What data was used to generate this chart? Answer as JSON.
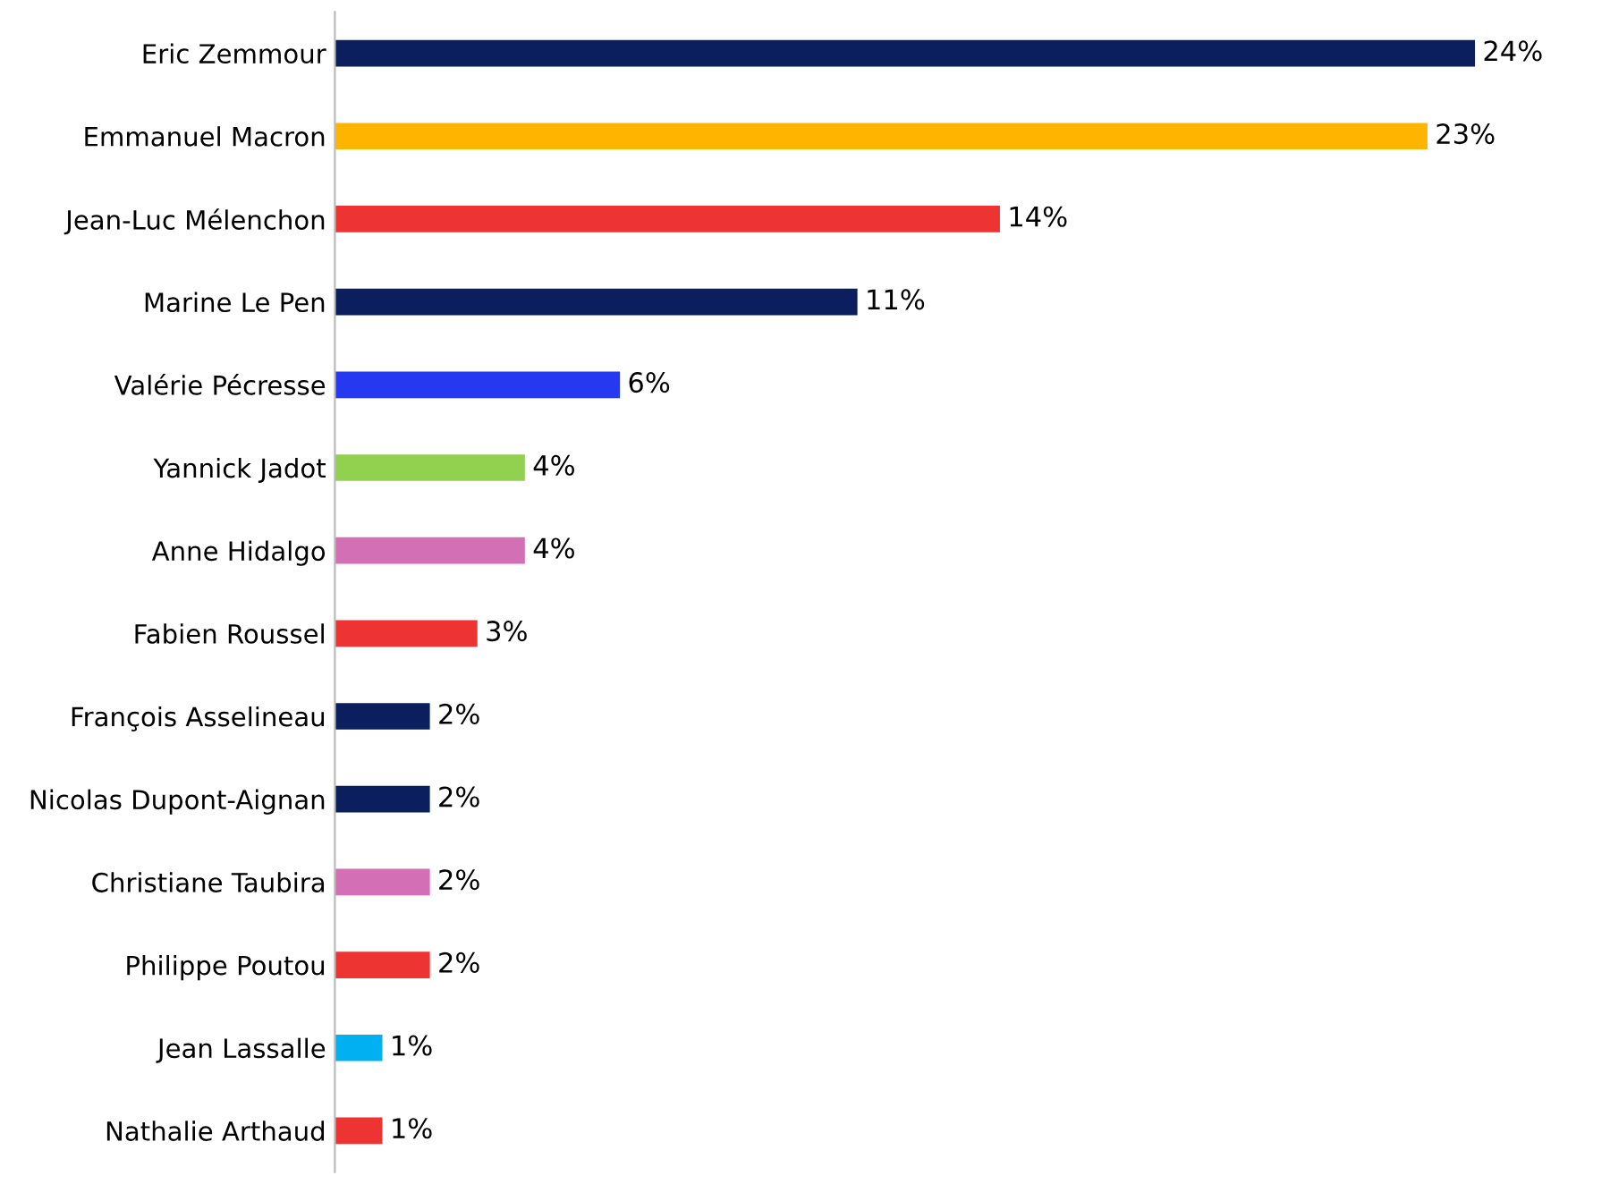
{
  "chart_data": {
    "type": "bar",
    "orientation": "horizontal",
    "value_labels": [
      "24%",
      "23%",
      "14%",
      "11%",
      "6%",
      "4%",
      "4%",
      "3%",
      "2%",
      "2%",
      "2%",
      "2%",
      "1%",
      "1%"
    ],
    "categories": [
      "Eric Zemmour",
      "Emmanuel Macron",
      "Jean-Luc Mélenchon",
      "Marine Le Pen",
      "Valérie Pécresse",
      "Yannick Jadot",
      "Anne Hidalgo",
      "Fabien Roussel",
      "François Asselineau",
      "Nicolas Dupont-Aignan",
      "Christiane Taubira",
      "Philippe Poutou",
      "Jean Lassalle",
      "Nathalie Arthaud"
    ],
    "values": [
      24,
      23,
      14,
      11,
      6,
      4,
      4,
      3,
      2,
      2,
      2,
      2,
      1,
      1
    ],
    "colors": [
      "#0b1f5e",
      "#ffb500",
      "#ee3333",
      "#0b1f5e",
      "#2639f0",
      "#92d050",
      "#d36fb5",
      "#ee3333",
      "#0b1f5e",
      "#0b1f5e",
      "#d36fb5",
      "#ee3333",
      "#00b0f0",
      "#ee3333"
    ],
    "grid": false,
    "tick_labels": "y"
  }
}
